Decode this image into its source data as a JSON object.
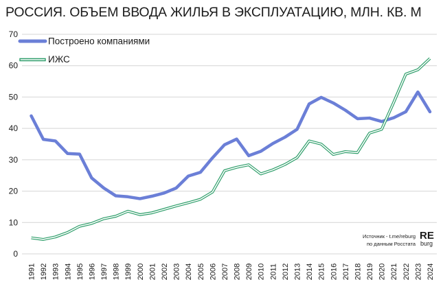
{
  "title": "РОССИЯ. ОБЪЕМ ВВОДА  ЖИЛЬЯ В ЭКСПЛУАТАЦИЮ, МЛН. КВ. М",
  "source": {
    "line1": "Источник - t.me/reburg",
    "line2": "по данным Росстата"
  },
  "logo": {
    "top": "RE",
    "bottom": "burg",
    "color": "#2fa36b"
  },
  "chart_data": {
    "type": "line",
    "title": "РОССИЯ. ОБЪЕМ ВВОДА  ЖИЛЬЯ В ЭКСПЛУАТАЦИЮ, МЛН. КВ. М",
    "xlabel": "",
    "ylabel": "",
    "ylim": [
      0,
      70
    ],
    "yticks": [
      0,
      10,
      20,
      30,
      40,
      50,
      60,
      70
    ],
    "grid": "horizontal",
    "legend_position": "top-left",
    "categories": [
      "1991",
      "1992",
      "1993",
      "1994",
      "1995",
      "1996",
      "1997",
      "1998",
      "1999",
      "2000",
      "2001",
      "2002",
      "2003",
      "2004",
      "2005",
      "2006",
      "2007",
      "2008",
      "2009",
      "2010",
      "2011",
      "2012",
      "2013",
      "2014",
      "2015",
      "2016",
      "2017",
      "2018",
      "2019",
      "2020",
      "2021",
      "2022",
      "2023",
      "2024"
    ],
    "series": [
      {
        "name": "Построено компаниями",
        "color": "#6b7fd7",
        "style": "thick-line",
        "values": [
          44,
          36.5,
          36,
          32,
          31.8,
          24.2,
          21,
          18.5,
          18.2,
          17.6,
          18.4,
          19.4,
          21,
          24.8,
          26,
          30.6,
          34.8,
          36.6,
          31.3,
          32.7,
          35.2,
          37.2,
          39.7,
          47.8,
          49.9,
          48.1,
          45.8,
          43.1,
          43.3,
          42.2,
          43.4,
          45.3,
          51.6,
          45.3
        ]
      },
      {
        "name": "ИЖС",
        "color": "#2e9e6a",
        "style": "double-line",
        "values": [
          5.1,
          4.6,
          5.4,
          6.8,
          8.8,
          9.7,
          11.2,
          12,
          13.6,
          12.5,
          13.1,
          14.2,
          15.3,
          16.3,
          17.4,
          19.7,
          26.5,
          27.6,
          28.4,
          25.5,
          26.8,
          28.5,
          30.7,
          36,
          35,
          31.7,
          32.6,
          32.3,
          38.5,
          39.7,
          48.3,
          57.3,
          58.7,
          62.3
        ]
      }
    ]
  }
}
